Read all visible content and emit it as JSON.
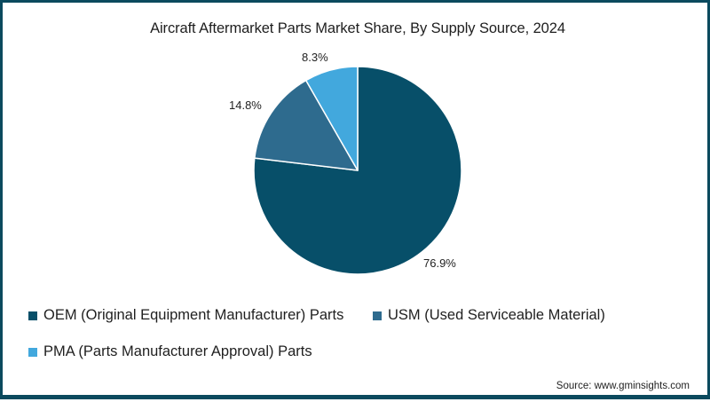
{
  "title": "Aircraft Aftermarket Parts Market Share, By Supply Source, 2024",
  "source": "Source: www.gminsights.com",
  "colors": {
    "border": "#0b4a5e",
    "oem": "#074f69",
    "usm": "#2e6b8e",
    "pma": "#42a8dd"
  },
  "legend": [
    {
      "label": "OEM (Original Equipment Manufacturer) Parts",
      "color": "#074f69"
    },
    {
      "label": "USM (Used Serviceable Material)",
      "color": "#2e6b8e"
    },
    {
      "label": "PMA (Parts Manufacturer Approval) Parts",
      "color": "#42a8dd"
    }
  ],
  "labels": {
    "oem": "76.9%",
    "usm": "14.8%",
    "pma": "8.3%"
  },
  "chart_data": {
    "type": "pie",
    "title": "Aircraft Aftermarket Parts Market Share, By Supply Source, 2024",
    "categories": [
      "OEM (Original Equipment Manufacturer) Parts",
      "USM (Used Serviceable Material)",
      "PMA (Parts Manufacturer Approval) Parts"
    ],
    "values": [
      76.9,
      14.8,
      8.3
    ],
    "unit": "%",
    "colors": [
      "#074f69",
      "#2e6b8e",
      "#42a8dd"
    ],
    "data_labels": [
      "76.9%",
      "14.8%",
      "8.3%"
    ],
    "legend_position": "bottom",
    "start_angle": "12 o'clock, OEM clockwise",
    "source": "Source: www.gminsights.com"
  }
}
